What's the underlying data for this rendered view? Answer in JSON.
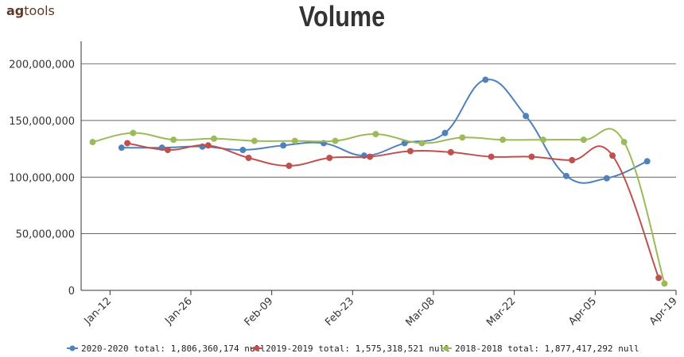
{
  "brand": {
    "prefix": "ag",
    "suffix": "tools"
  },
  "chart_data": {
    "type": "line",
    "title": "Volume",
    "xlabel": "",
    "ylabel": "",
    "ylim": [
      0,
      220000000
    ],
    "yticks": [
      0,
      50000000,
      100000000,
      150000000,
      200000000
    ],
    "ytick_labels": [
      "0",
      "50,000,000",
      "100,000,000",
      "150,000,000",
      "200,000,000"
    ],
    "xticks": [
      "2020-01-12",
      "2020-01-26",
      "2020-02-09",
      "2020-02-23",
      "2020-03-08",
      "2020-03-22",
      "2020-04-05",
      "2020-04-19"
    ],
    "xtick_labels": [
      "Jan-12",
      "Jan-26",
      "Feb-09",
      "Feb-23",
      "Mar-08",
      "Mar-22",
      "Apr-05",
      "Apr-19"
    ],
    "xlim": [
      "2020-01-07",
      "2020-04-19"
    ],
    "grid": true,
    "legend_position": "bottom",
    "series": [
      {
        "name": "2020-2020 total: 1,806,360,174 null",
        "color": "#4f81bd",
        "points": [
          [
            "2020-01-14",
            126000000
          ],
          [
            "2020-01-21",
            126000000
          ],
          [
            "2020-01-28",
            127000000
          ],
          [
            "2020-02-04",
            124000000
          ],
          [
            "2020-02-11",
            128000000
          ],
          [
            "2020-02-18",
            130000000
          ],
          [
            "2020-02-25",
            119000000
          ],
          [
            "2020-03-03",
            130000000
          ],
          [
            "2020-03-10",
            139000000
          ],
          [
            "2020-03-17",
            186000000
          ],
          [
            "2020-03-24",
            154000000
          ],
          [
            "2020-03-31",
            101000000
          ],
          [
            "2020-04-07",
            99000000
          ],
          [
            "2020-04-14",
            114000000
          ]
        ]
      },
      {
        "name": "2019-2019 total: 1,575,318,521 null",
        "color": "#c0504d",
        "points": [
          [
            "2020-01-15",
            130000000
          ],
          [
            "2020-01-22",
            124000000
          ],
          [
            "2020-01-29",
            128000000
          ],
          [
            "2020-02-05",
            117000000
          ],
          [
            "2020-02-12",
            110000000
          ],
          [
            "2020-02-19",
            117000000
          ],
          [
            "2020-02-26",
            118000000
          ],
          [
            "2020-03-04",
            123000000
          ],
          [
            "2020-03-11",
            122000000
          ],
          [
            "2020-03-18",
            118000000
          ],
          [
            "2020-03-25",
            118000000
          ],
          [
            "2020-04-01",
            115000000
          ],
          [
            "2020-04-08",
            119000000
          ],
          [
            "2020-04-16",
            11000000
          ]
        ]
      },
      {
        "name": "2018-2018 total: 1,877,417,292 null",
        "color": "#9bbb59",
        "points": [
          [
            "2020-01-09",
            131000000
          ],
          [
            "2020-01-16",
            139000000
          ],
          [
            "2020-01-23",
            133000000
          ],
          [
            "2020-01-30",
            134000000
          ],
          [
            "2020-02-06",
            132000000
          ],
          [
            "2020-02-13",
            132000000
          ],
          [
            "2020-02-20",
            132000000
          ],
          [
            "2020-02-27",
            138000000
          ],
          [
            "2020-03-06",
            130000000
          ],
          [
            "2020-03-13",
            135000000
          ],
          [
            "2020-03-20",
            133000000
          ],
          [
            "2020-03-27",
            133000000
          ],
          [
            "2020-04-03",
            133000000
          ],
          [
            "2020-04-10",
            131000000
          ],
          [
            "2020-04-17",
            6000000
          ]
        ]
      }
    ]
  }
}
